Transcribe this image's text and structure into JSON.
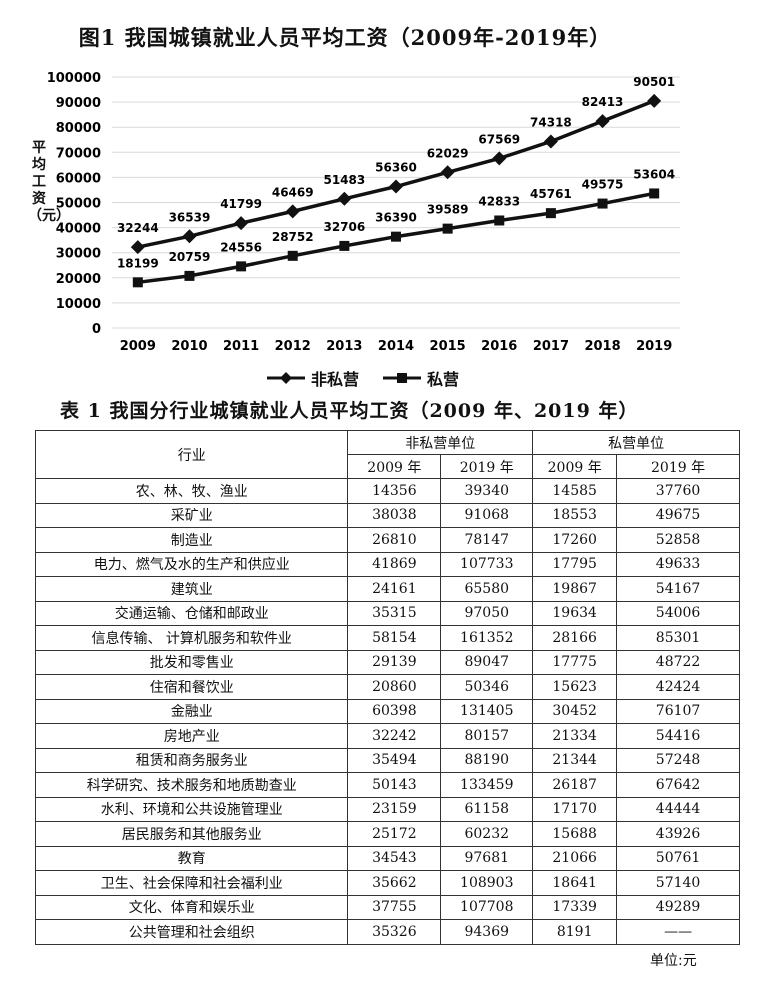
{
  "figure": {
    "title": "图1  我国城镇就业人员平均工资（2009年-2019年）"
  },
  "chart_data": {
    "type": "line",
    "title": "图1  我国城镇就业人员平均工资（2009年-2019年）",
    "ylabel": "平均工资（元）",
    "xlabel": "",
    "categories": [
      "2009",
      "2010",
      "2011",
      "2012",
      "2013",
      "2014",
      "2015",
      "2016",
      "2017",
      "2018",
      "2019"
    ],
    "yticks": [
      "0",
      "10000",
      "20000",
      "30000",
      "40000",
      "50000",
      "60000",
      "70000",
      "80000",
      "90000",
      "100000"
    ],
    "ylim": [
      0,
      100000
    ],
    "grid": true,
    "legend_position": "bottom",
    "series": [
      {
        "name": "非私营",
        "marker": "diamond",
        "values": [
          32244,
          36539,
          41799,
          46469,
          51483,
          56360,
          62029,
          67569,
          74318,
          82413,
          90501
        ]
      },
      {
        "name": "私营",
        "marker": "square",
        "values": [
          18199,
          20759,
          24556,
          28752,
          32706,
          36390,
          39589,
          42833,
          45761,
          49575,
          53604
        ]
      }
    ]
  },
  "table": {
    "title": "表 1    我国分行业城镇就业人员平均工资（2009 年、2019 年）",
    "col_industry": "行业",
    "group1": "非私营单位",
    "group2": "私营单位",
    "year1": "2009 年",
    "year2": "2019 年",
    "rows": [
      [
        "农、林、牧、渔业",
        "14356",
        "39340",
        "14585",
        "37760"
      ],
      [
        "采矿业",
        "38038",
        "91068",
        "18553",
        "49675"
      ],
      [
        "制造业",
        "26810",
        "78147",
        "17260",
        "52858"
      ],
      [
        "电力、燃气及水的生产和供应业",
        "41869",
        "107733",
        "17795",
        "49633"
      ],
      [
        "建筑业",
        "24161",
        "65580",
        "19867",
        "54167"
      ],
      [
        "交通运输、仓储和邮政业",
        "35315",
        "97050",
        "19634",
        "54006"
      ],
      [
        "信息传输、 计算机服务和软件业",
        "58154",
        "161352",
        "28166",
        "85301"
      ],
      [
        "批发和零售业",
        "29139",
        "89047",
        "17775",
        "48722"
      ],
      [
        "住宿和餐饮业",
        "20860",
        "50346",
        "15623",
        "42424"
      ],
      [
        "金融业",
        "60398",
        "131405",
        "30452",
        "76107"
      ],
      [
        "房地产业",
        "32242",
        "80157",
        "21334",
        "54416"
      ],
      [
        "租赁和商务服务业",
        "35494",
        "88190",
        "21344",
        "57248"
      ],
      [
        "科学研究、技术服务和地质勘查业",
        "50143",
        "133459",
        "26187",
        "67642"
      ],
      [
        "水利、环境和公共设施管理业",
        "23159",
        "61158",
        "17170",
        "44444"
      ],
      [
        "居民服务和其他服务业",
        "25172",
        "60232",
        "15688",
        "43926"
      ],
      [
        "教育",
        "34543",
        "97681",
        "21066",
        "50761"
      ],
      [
        "卫生、社会保障和社会福利业",
        "35662",
        "108903",
        "18641",
        "57140"
      ],
      [
        "文化、体育和娱乐业",
        "37755",
        "107708",
        "17339",
        "49289"
      ],
      [
        "公共管理和社会组织",
        "35326",
        "94369",
        "8191",
        "——"
      ]
    ],
    "unit": "单位:元"
  }
}
